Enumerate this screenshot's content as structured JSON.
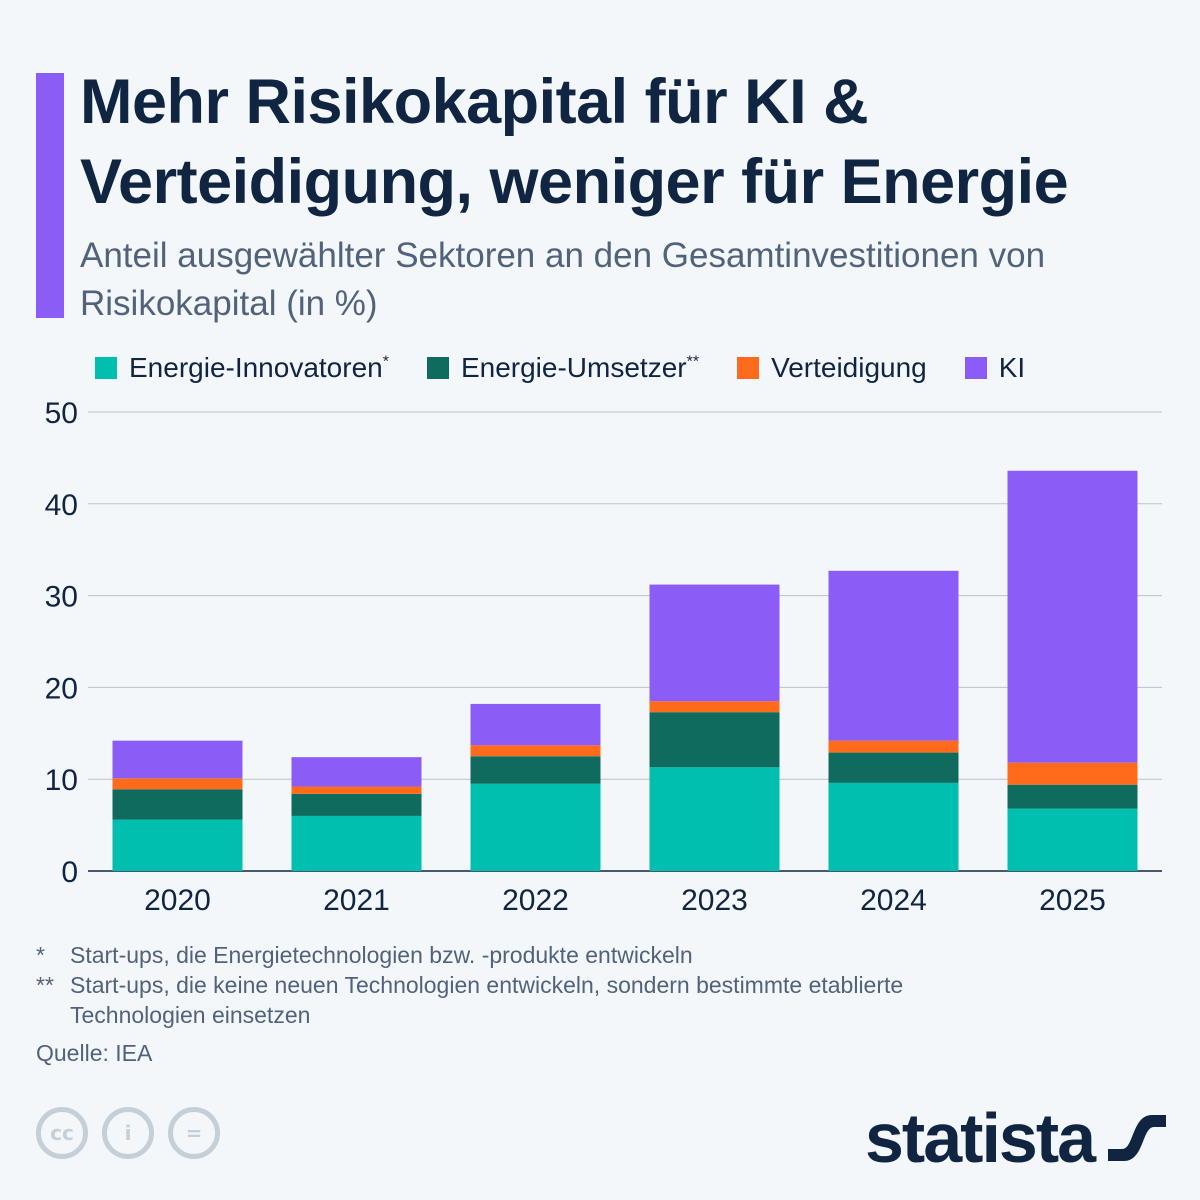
{
  "title": "Mehr Risikokapital für KI & Verteidigung, weniger für Energie",
  "subtitle": "Anteil ausgewählter Sektoren an den Gesamtinvestitionen von Risikokapital (in %)",
  "chart_data": {
    "type": "bar",
    "stacked": true,
    "categories": [
      "2020",
      "2021",
      "2022",
      "2023",
      "2024",
      "2025"
    ],
    "series": [
      {
        "name": "Energie-Innovatoren",
        "marker": "*",
        "color": "#00bfae",
        "values": [
          5.6,
          6.0,
          9.5,
          11.3,
          9.6,
          6.8
        ]
      },
      {
        "name": "Energie-Umsetzer",
        "marker": "**",
        "color": "#0e6b5e",
        "values": [
          3.3,
          2.4,
          3.0,
          6.0,
          3.3,
          2.6
        ]
      },
      {
        "name": "Verteidigung",
        "marker": "",
        "color": "#ff6b1a",
        "values": [
          1.2,
          0.8,
          1.2,
          1.2,
          1.3,
          2.4
        ]
      },
      {
        "name": "KI",
        "marker": "",
        "color": "#8b5cf6",
        "values": [
          4.1,
          3.2,
          4.5,
          12.7,
          18.5,
          31.8
        ]
      }
    ],
    "ylim": [
      0,
      50
    ],
    "yticks": [
      "0",
      "10",
      "20",
      "30",
      "40",
      "50"
    ],
    "grid": true,
    "legend": "top"
  },
  "notes": [
    {
      "marker": "*",
      "text": "Start-ups, die Energietechnologien bzw. -produkte entwickeln"
    },
    {
      "marker": "**",
      "text": "Start-ups, die keine neuen Technologien entwickeln, sondern bestimmte etablierte Technologien einsetzen"
    }
  ],
  "source": "Quelle: IEA",
  "license_icons": [
    "cc",
    "i",
    "="
  ],
  "logo": "statista"
}
